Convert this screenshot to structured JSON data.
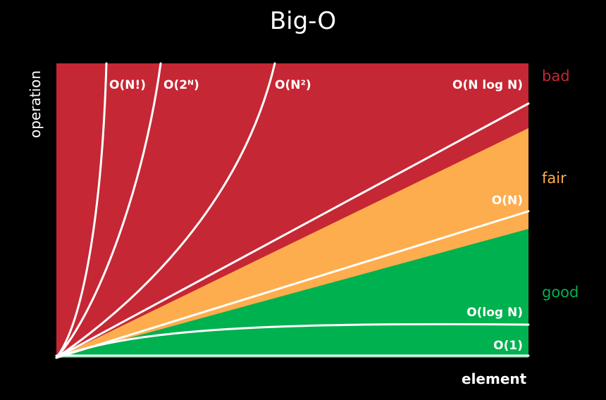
{
  "chart_data": {
    "type": "area",
    "title": "Big-O",
    "xlabel": "element",
    "ylabel": "operation",
    "zones": [
      {
        "name": "bad",
        "color": "#C62734"
      },
      {
        "name": "fair",
        "color": "#FDAD4E"
      },
      {
        "name": "good",
        "color": "#00B14F"
      }
    ],
    "series": [
      {
        "name": "O(N!)"
      },
      {
        "name": "O(2ᴺ)"
      },
      {
        "name": "O(N²)"
      },
      {
        "name": "O(N log N)"
      },
      {
        "name": "O(N)"
      },
      {
        "name": "O(log N)"
      },
      {
        "name": "O(1)"
      }
    ]
  }
}
